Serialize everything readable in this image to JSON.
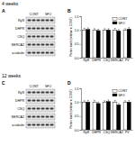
{
  "panels": [
    "A",
    "B",
    "C",
    "D"
  ],
  "headings": [
    "4 weeks",
    "12 weeks"
  ],
  "blots": [
    {
      "columns": [
        "CONT",
        "SFO"
      ],
      "rows": [
        "RyR",
        "DHPR",
        "CSQ",
        "SERCA2",
        "α-tubulin"
      ]
    },
    {
      "columns": [
        "CONT",
        "SFO"
      ],
      "rows": [
        "RyR",
        "DHPR",
        "CSQ",
        "SERCA2",
        "α-tubulin"
      ]
    }
  ],
  "chart_data": [
    {
      "type": "bar",
      "ylabel": "Protein levels (relative to CONT)",
      "categories": [
        "RyR",
        "DHPR",
        "CSQ",
        "SERCA2",
        "PV"
      ],
      "series": [
        {
          "name": "CONT",
          "color": "#ffffff",
          "values": [
            1.0,
            1.0,
            1.0,
            1.0,
            1.0
          ],
          "errors": [
            0.06,
            0.05,
            0.05,
            0.06,
            0.05
          ]
        },
        {
          "name": "SFO",
          "color": "#000000",
          "values": [
            1.02,
            0.98,
            1.0,
            0.97,
            1.03
          ],
          "errors": [
            0.06,
            0.05,
            0.05,
            0.05,
            0.06
          ]
        }
      ],
      "ylim": [
        0,
        1.5
      ],
      "yticks": [
        {
          "value": 0,
          "label": "0.0"
        },
        {
          "value": 0.5,
          "label": "0.5"
        },
        {
          "value": 1,
          "label": "1.0"
        },
        {
          "value": 1.5,
          "label": "1.5"
        }
      ],
      "legend": "upper right"
    },
    {
      "type": "bar",
      "ylabel": "Protein levels (relative to CONT)",
      "categories": [
        "RyR",
        "DHPR",
        "CSQ",
        "SERCA2",
        "PV"
      ],
      "series": [
        {
          "name": "CONT",
          "color": "#ffffff",
          "values": [
            1.0,
            1.0,
            1.0,
            1.0,
            1.0
          ],
          "errors": [
            0.05,
            0.06,
            0.05,
            0.06,
            0.05
          ]
        },
        {
          "name": "SFO",
          "color": "#000000",
          "values": [
            1.0,
            0.95,
            1.02,
            0.9,
            1.0
          ],
          "errors": [
            0.06,
            0.05,
            0.06,
            0.05,
            0.06
          ]
        }
      ],
      "ylim": [
        0,
        1.5
      ],
      "yticks": [
        {
          "value": 0,
          "label": "0.0"
        },
        {
          "value": 0.5,
          "label": "0.5"
        },
        {
          "value": 1,
          "label": "1.0"
        },
        {
          "value": 1.5,
          "label": "1.5"
        }
      ],
      "legend": "upper right"
    }
  ]
}
